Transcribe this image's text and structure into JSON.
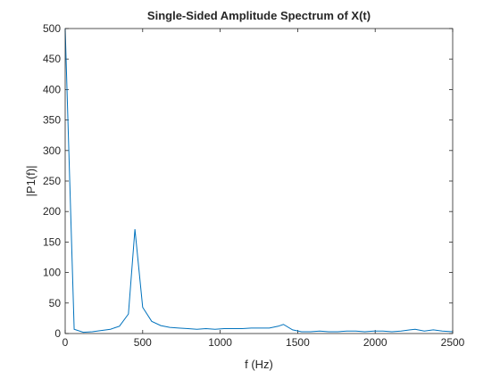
{
  "chart_data": {
    "type": "line",
    "title": "Single-Sided Amplitude Spectrum of X(t)",
    "xlabel": "f (Hz)",
    "ylabel": "|P1(f)|",
    "xlim": [
      0,
      2500
    ],
    "ylim": [
      0,
      500
    ],
    "xticks": [
      0,
      500,
      1000,
      1500,
      2000,
      2500
    ],
    "yticks": [
      0,
      50,
      100,
      150,
      200,
      250,
      300,
      350,
      400,
      450,
      500
    ],
    "grid": false,
    "line_color": "#0072BD",
    "series": [
      {
        "x": [
          0,
          58,
          117,
          175,
          233,
          292,
          350,
          408,
          450,
          500,
          558,
          617,
          675,
          733,
          792,
          850,
          908,
          967,
          1025,
          1083,
          1142,
          1200,
          1258,
          1317,
          1375,
          1408,
          1467,
          1525,
          1583,
          1642,
          1700,
          1758,
          1817,
          1875,
          1933,
          1992,
          2050,
          2108,
          2167,
          2225,
          2258,
          2317,
          2375,
          2433,
          2500
        ],
        "y": [
          500,
          7,
          2,
          3,
          5,
          7,
          12,
          32,
          171,
          43,
          20,
          13,
          10,
          9,
          8,
          7,
          8,
          7,
          8,
          8,
          8,
          9,
          9,
          9,
          12,
          15,
          6,
          3,
          3,
          4,
          3,
          3,
          4,
          4,
          3,
          4,
          4,
          3,
          4,
          6,
          7,
          4,
          6,
          4,
          3
        ]
      }
    ]
  }
}
